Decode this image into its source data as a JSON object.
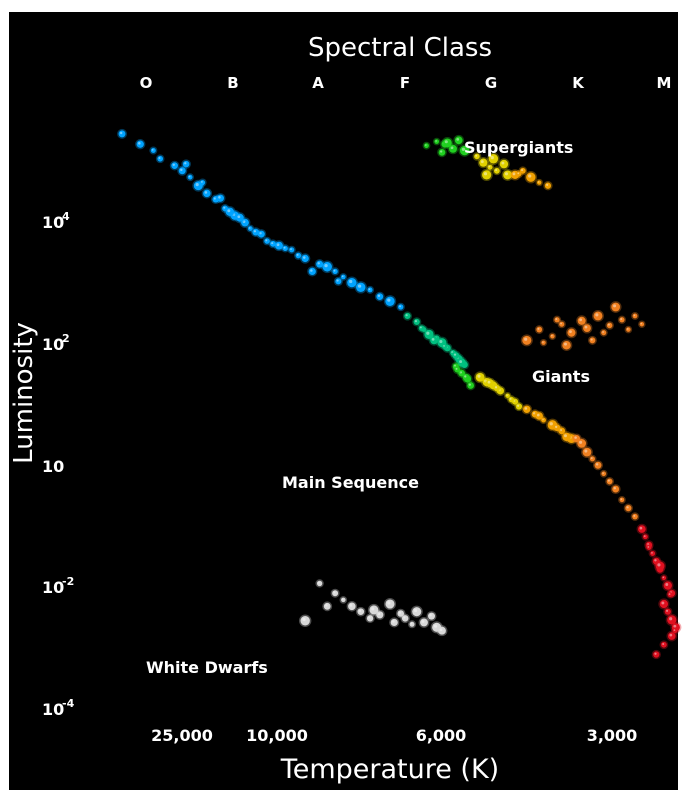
{
  "chart_data": {
    "type": "scatter",
    "title": "Spectral Class",
    "xlabel": "Temperature (K)",
    "ylabel": "Luminosity",
    "xscale": "log (temperature decreasing to the right)",
    "yscale": "log",
    "xlim": [
      40000,
      2500
    ],
    "ylim": [
      0.0001,
      1000000
    ],
    "spectral_classes": [
      "O",
      "B",
      "A",
      "F",
      "G",
      "K",
      "M"
    ],
    "x_tick_labels": [
      "25,000",
      "10,000",
      "6,000",
      "3,000"
    ],
    "y_tick_labels": [
      {
        "base": "10",
        "exp": "4"
      },
      {
        "base": "10",
        "exp": "2"
      },
      {
        "base": "10",
        "exp": ""
      },
      {
        "base": "10",
        "exp": "-2"
      },
      {
        "base": "10",
        "exp": "-4"
      }
    ],
    "grid": false,
    "background": "#000000",
    "annotations": [
      "Supergiants",
      "Giants",
      "Main Sequence",
      "White Dwarfs"
    ],
    "series": [
      {
        "color": "#00a3ff",
        "points": [
          [
            36000,
            280000
          ],
          [
            33000,
            190000
          ],
          [
            31000,
            150000
          ],
          [
            30000,
            110000
          ],
          [
            28000,
            85000
          ],
          [
            27000,
            70000
          ],
          [
            26000,
            55000
          ],
          [
            25000,
            40000
          ],
          [
            24000,
            30000
          ],
          [
            23000,
            24000
          ],
          [
            22000,
            17000
          ],
          [
            21000,
            13000
          ],
          [
            20000,
            10000
          ],
          [
            19500,
            8000
          ],
          [
            18500,
            6500
          ],
          [
            18000,
            5000
          ],
          [
            17000,
            4200
          ],
          [
            16000,
            3600
          ],
          [
            15000,
            2600
          ],
          [
            14000,
            2100
          ],
          [
            13000,
            1600
          ],
          [
            12500,
            1300
          ],
          [
            12000,
            1050
          ],
          [
            11500,
            880
          ],
          [
            11000,
            800
          ],
          [
            10500,
            620
          ],
          [
            10000,
            520
          ],
          [
            9500,
            420
          ],
          [
            26500,
            90000
          ],
          [
            22500,
            25000
          ],
          [
            20500,
            12000
          ],
          [
            17500,
            4500
          ],
          [
            16500,
            3800
          ],
          [
            13500,
            1900
          ],
          [
            19000,
            7000
          ],
          [
            15500,
            2900
          ],
          [
            14500,
            1600
          ],
          [
            12800,
            1100
          ],
          [
            24500,
            45000
          ],
          [
            21500,
            15000
          ]
        ]
      },
      {
        "color": "#00c080",
        "points": [
          [
            9200,
            300
          ],
          [
            8800,
            240
          ],
          [
            8500,
            180
          ],
          [
            8300,
            150
          ],
          [
            8000,
            130
          ],
          [
            7800,
            110
          ],
          [
            7600,
            90
          ],
          [
            7400,
            75
          ],
          [
            7200,
            60
          ],
          [
            7000,
            48
          ],
          [
            7100,
            52
          ],
          [
            8100,
            120
          ],
          [
            7700,
            95
          ],
          [
            8600,
            190
          ],
          [
            7300,
            68
          ]
        ]
      },
      {
        "color": "#20d020",
        "points": [
          [
            8400,
            180000
          ],
          [
            8000,
            210000
          ],
          [
            7700,
            190000
          ],
          [
            7400,
            160000
          ],
          [
            7200,
            220000
          ],
          [
            7000,
            150000
          ],
          [
            7300,
            45
          ],
          [
            7100,
            35
          ],
          [
            6900,
            28
          ],
          [
            6800,
            22
          ],
          [
            7600,
            200000
          ],
          [
            7800,
            140000
          ],
          [
            6950,
            30
          ],
          [
            7250,
            40
          ]
        ]
      },
      {
        "color": "#e0d000",
        "points": [
          [
            6600,
            120000
          ],
          [
            6400,
            95000
          ],
          [
            6200,
            80000
          ],
          [
            6000,
            70000
          ],
          [
            5800,
            90000
          ],
          [
            5700,
            60000
          ],
          [
            6100,
            110000
          ],
          [
            6300,
            60000
          ],
          [
            6500,
            30
          ],
          [
            6300,
            25
          ],
          [
            6100,
            22
          ],
          [
            5900,
            18
          ],
          [
            5700,
            15
          ],
          [
            5500,
            12
          ],
          [
            5400,
            10
          ],
          [
            5600,
            13
          ],
          [
            6000,
            20
          ],
          [
            6200,
            24
          ]
        ]
      },
      {
        "color": "#f0a000",
        "points": [
          [
            5500,
            60000
          ],
          [
            5300,
            70000
          ],
          [
            5100,
            55000
          ],
          [
            4900,
            45000
          ],
          [
            4700,
            40000
          ],
          [
            5200,
            9
          ],
          [
            5000,
            7.5
          ],
          [
            4800,
            6
          ],
          [
            4600,
            5
          ],
          [
            4400,
            4
          ],
          [
            4200,
            3
          ],
          [
            4900,
            7
          ],
          [
            4500,
            4.5
          ],
          [
            5400,
            62000
          ],
          [
            4300,
            3.2
          ]
        ]
      },
      {
        "color": "#f08020",
        "points": [
          [
            5200,
            120
          ],
          [
            4900,
            180
          ],
          [
            4600,
            140
          ],
          [
            4400,
            220
          ],
          [
            4200,
            160
          ],
          [
            4000,
            250
          ],
          [
            3900,
            190
          ],
          [
            3700,
            300
          ],
          [
            3500,
            210
          ],
          [
            3400,
            420
          ],
          [
            3300,
            260
          ],
          [
            3200,
            180
          ],
          [
            3100,
            300
          ],
          [
            3000,
            220
          ],
          [
            4100,
            3
          ],
          [
            4000,
            2.5
          ],
          [
            3900,
            1.8
          ],
          [
            3800,
            1.4
          ],
          [
            3700,
            1.1
          ],
          [
            3600,
            0.8
          ],
          [
            3500,
            0.6
          ],
          [
            3400,
            0.45
          ],
          [
            3300,
            0.3
          ],
          [
            3200,
            0.22
          ],
          [
            3100,
            0.16
          ],
          [
            3800,
            120
          ],
          [
            4300,
            100
          ],
          [
            3600,
            160
          ],
          [
            4500,
            260
          ],
          [
            4800,
            110
          ]
        ]
      },
      {
        "color": "#e01020",
        "points": [
          [
            3000,
            0.1
          ],
          [
            2950,
            0.075
          ],
          [
            2900,
            0.055
          ],
          [
            2850,
            0.04
          ],
          [
            2800,
            0.03
          ],
          [
            2750,
            0.022
          ],
          [
            2700,
            0.016
          ],
          [
            2650,
            0.012
          ],
          [
            2600,
            0.009
          ],
          [
            2700,
            0.006
          ],
          [
            2650,
            0.0045
          ],
          [
            2600,
            0.0033
          ],
          [
            2550,
            0.0025
          ],
          [
            2600,
            0.0018
          ],
          [
            2700,
            0.0013
          ],
          [
            2800,
            0.0009
          ],
          [
            2900,
            0.05
          ],
          [
            2750,
            0.025
          ],
          [
            2620,
            0.0085
          ],
          [
            2560,
            0.0022
          ]
        ]
      },
      {
        "color": "#d8d8d8",
        "points": [
          [
            14000,
            0.013
          ],
          [
            13000,
            0.009
          ],
          [
            12500,
            0.007
          ],
          [
            12000,
            0.0055
          ],
          [
            11500,
            0.0045
          ],
          [
            11000,
            0.0035
          ],
          [
            10500,
            0.004
          ],
          [
            10000,
            0.006
          ],
          [
            9800,
            0.003
          ],
          [
            9500,
            0.0042
          ],
          [
            9000,
            0.0028
          ],
          [
            8800,
            0.0045
          ],
          [
            8500,
            0.003
          ],
          [
            8200,
            0.0038
          ],
          [
            8000,
            0.0025
          ],
          [
            7800,
            0.0022
          ],
          [
            13500,
            0.0055
          ],
          [
            15000,
            0.0032
          ],
          [
            10800,
            0.0048
          ],
          [
            9300,
            0.0035
          ]
        ]
      }
    ]
  }
}
